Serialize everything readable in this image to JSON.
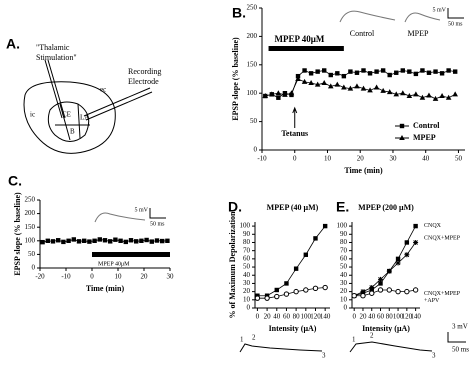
{
  "panel_a": {
    "label": "A.",
    "stimulation": [
      "\"Thalamic",
      "Stimulation\""
    ],
    "electrode": [
      "Recording",
      "Electrode"
    ],
    "regions": [
      "ec",
      "ic",
      "CE",
      "LA",
      "B"
    ]
  },
  "chart_data": [
    {
      "type": "line",
      "panel": "B.",
      "ylabel": "EPSP slope (% baseline)",
      "xlabel": "Time (min)",
      "x": [
        -9,
        -7,
        -5,
        -3,
        -1,
        1,
        3,
        5,
        7,
        9,
        11,
        13,
        15,
        17,
        19,
        21,
        23,
        25,
        27,
        29,
        31,
        33,
        35,
        37,
        39,
        41,
        43,
        45,
        47,
        49
      ],
      "series": [
        {
          "name": "Control",
          "color": "#000000",
          "marker": "square",
          "values": [
            95,
            98,
            92,
            100,
            97,
            130,
            140,
            135,
            138,
            140,
            132,
            135,
            130,
            138,
            136,
            140,
            135,
            138,
            140,
            132,
            136,
            140,
            138,
            134,
            140,
            136,
            138,
            135,
            140,
            138
          ]
        },
        {
          "name": "MPEP",
          "color": "#000000",
          "marker": "triangle",
          "values": [
            95,
            98,
            100,
            97,
            100,
            125,
            120,
            118,
            115,
            118,
            112,
            115,
            110,
            108,
            112,
            108,
            105,
            110,
            104,
            102,
            98,
            100,
            95,
            98,
            92,
            96,
            90,
            95,
            92,
            98
          ]
        }
      ],
      "xlim": [
        -10,
        52
      ],
      "xticks": [
        -10,
        0,
        10,
        20,
        30,
        40,
        50
      ],
      "ylim": [
        0,
        250
      ],
      "yticks": [
        0,
        50,
        100,
        150,
        200,
        250
      ],
      "legend": "lower right",
      "drug_bar": {
        "label": "MPEP 40μM",
        "x": [
          -8,
          15
        ]
      },
      "annotation": {
        "text": "Tetanus",
        "x": 0
      },
      "insets": [
        "Control",
        "MPEP"
      ],
      "scale_bar": [
        "5 mV",
        "50 ms"
      ]
    },
    {
      "type": "line",
      "panel": "C.",
      "ylabel": "EPSP slope (% baseline)",
      "xlabel": "Time (min)",
      "x": [
        -19,
        -17,
        -15,
        -13,
        -11,
        -9,
        -7,
        -5,
        -3,
        -1,
        1,
        3,
        5,
        7,
        9,
        11,
        13,
        15,
        17,
        19,
        21,
        23,
        25,
        27,
        29
      ],
      "series": [
        {
          "color": "#000000",
          "marker": "square",
          "values": [
            95,
            100,
            98,
            102,
            96,
            100,
            105,
            98,
            100,
            97,
            100,
            105,
            102,
            98,
            104,
            100,
            96,
            102,
            98,
            100,
            103,
            97,
            101,
            99,
            100
          ]
        }
      ],
      "xlim": [
        -20,
        30
      ],
      "xticks": [
        -20,
        -10,
        0,
        10,
        20,
        30
      ],
      "ylim": [
        0,
        250
      ],
      "yticks": [
        0,
        50,
        100,
        150,
        200,
        250
      ],
      "drug_bar": {
        "label": "MPEP 40μM",
        "x": [
          0,
          30
        ]
      },
      "scale_bar": [
        "5 mV",
        "50 ms"
      ]
    },
    {
      "type": "line",
      "panel": "D.",
      "title": "MPEP (40 μM)",
      "ylabel": "% of Maximum Depolarization",
      "xlabel": "Intensity (μA)",
      "x": [
        0,
        20,
        40,
        60,
        80,
        100,
        120,
        140
      ],
      "series": [
        {
          "color": "#000000",
          "marker": "square",
          "values": [
            15,
            15,
            22,
            30,
            48,
            65,
            85,
            100
          ]
        },
        {
          "color": "#000000",
          "marker": "circle-open",
          "values": [
            12,
            12,
            14,
            17,
            20,
            22,
            24,
            25
          ]
        }
      ],
      "xlim": [
        -5,
        150
      ],
      "xticks": [
        0,
        20,
        40,
        60,
        80,
        100,
        120,
        140
      ],
      "ylim": [
        0,
        105
      ],
      "yticks": [
        0,
        10,
        20,
        30,
        40,
        50,
        60,
        70,
        80,
        90,
        100
      ]
    },
    {
      "type": "line",
      "panel": "E.",
      "title": "MPEP (200 μM)",
      "xlabel": "Intensity (μA)",
      "x": [
        0,
        20,
        40,
        60,
        80,
        100,
        120,
        140
      ],
      "series": [
        {
          "name": "CNQX",
          "color": "#000000",
          "marker": "square",
          "values": [
            15,
            18,
            22,
            30,
            45,
            60,
            80,
            100
          ]
        },
        {
          "name": "CNQX+MPEP",
          "color": "#000000",
          "marker": "asterisk",
          "values": [
            15,
            20,
            25,
            35,
            45,
            55,
            65,
            80
          ]
        },
        {
          "name": "CNQX+MPEP +APV",
          "color": "#000000",
          "marker": "circle-open",
          "values": [
            15,
            15,
            18,
            22,
            22,
            20,
            20,
            22
          ]
        }
      ],
      "xlim": [
        -5,
        150
      ],
      "xticks": [
        0,
        20,
        40,
        60,
        80,
        100,
        120,
        140
      ],
      "ylim": [
        0,
        105
      ],
      "yticks": [
        0,
        10,
        20,
        30,
        40,
        50,
        60,
        70,
        80,
        90,
        100
      ],
      "legend": "line end"
    }
  ],
  "traces": [
    {
      "numbers": [
        "1",
        "2",
        "3"
      ]
    },
    {
      "numbers": [
        "1",
        "2",
        "3"
      ],
      "scale": [
        "3 mV",
        "50 ms"
      ]
    }
  ]
}
